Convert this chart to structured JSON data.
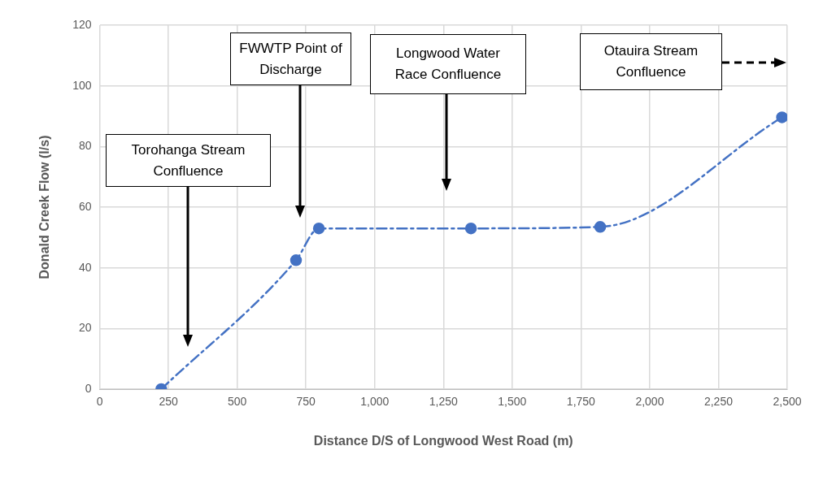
{
  "chart_data": {
    "type": "line",
    "xlabel": "Distance D/S of Longwood West Road (m)",
    "ylabel": "Donald Creek Flow (l/s)",
    "x": [
      224,
      714,
      797,
      1350,
      1820,
      2481
    ],
    "series": [
      {
        "color": "#4472c4",
        "values": [
          0,
          42.5,
          53,
          53,
          53.5,
          89.6
        ]
      }
    ],
    "xlim": [
      0,
      2500
    ],
    "xticks": [
      0,
      250,
      500,
      750,
      {
        "value": 1000,
        "label": "1,000"
      },
      {
        "value": 1250,
        "label": "1,250"
      },
      {
        "value": 1500,
        "label": "1,500"
      },
      {
        "value": 1750,
        "label": "1,750"
      },
      {
        "value": 2000,
        "label": "2,000"
      },
      {
        "value": 2250,
        "label": "2,250"
      },
      {
        "value": 2500,
        "label": "2,500"
      }
    ],
    "ylim": [
      0,
      120
    ],
    "yticks": [
      0,
      20,
      40,
      60,
      80,
      100,
      120
    ],
    "grid": true,
    "legend": false,
    "marker": "circle",
    "line_style": "dashed",
    "annotations": [
      "Torohanga Stream Confluence",
      "FWWTP Point of Discharge",
      "Longwood Water Race Confluence",
      "Otauira Stream Confluence"
    ]
  }
}
